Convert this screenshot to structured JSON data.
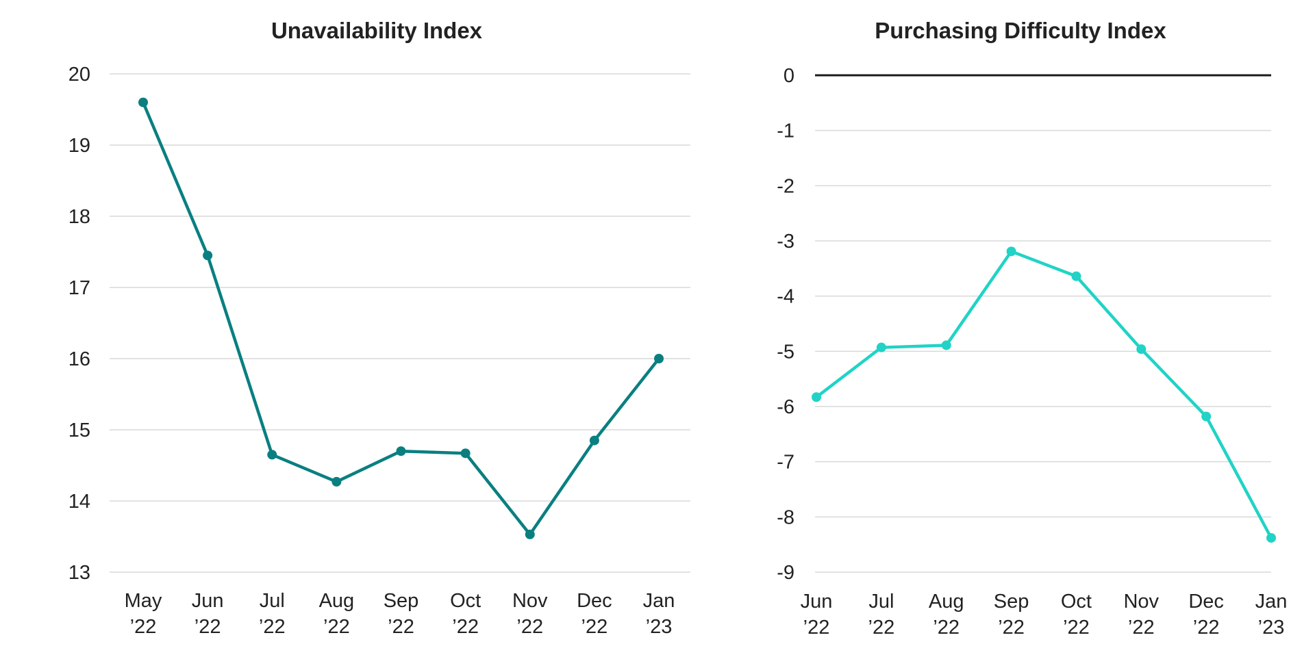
{
  "chart_data": [
    {
      "type": "line",
      "title": "Unavailability Index",
      "xlabel": "",
      "ylabel": "",
      "categories": [
        [
          "May",
          "’22"
        ],
        [
          "Jun",
          "’22"
        ],
        [
          "Jul",
          "’22"
        ],
        [
          "Aug",
          "’22"
        ],
        [
          "Sep",
          "’22"
        ],
        [
          "Oct",
          "’22"
        ],
        [
          "Nov",
          "’22"
        ],
        [
          "Dec",
          "’22"
        ],
        [
          "Jan",
          "’23"
        ]
      ],
      "values": [
        19.6,
        17.45,
        14.65,
        14.27,
        14.7,
        14.67,
        13.53,
        14.85,
        16.0
      ],
      "ylim": [
        13,
        20
      ],
      "yticks": [
        13,
        14,
        15,
        16,
        17,
        18,
        19,
        20
      ],
      "grid": true,
      "color": "#0a7f80"
    },
    {
      "type": "line",
      "title": "Purchasing Difficulty Index",
      "xlabel": "",
      "ylabel": "",
      "categories": [
        [
          "Jun",
          "’22"
        ],
        [
          "Jul",
          "’22"
        ],
        [
          "Aug",
          "’22"
        ],
        [
          "Sep",
          "’22"
        ],
        [
          "Oct",
          "’22"
        ],
        [
          "Nov",
          "’22"
        ],
        [
          "Dec",
          "’22"
        ],
        [
          "Jan",
          "’23"
        ]
      ],
      "values": [
        -5.83,
        -4.93,
        -4.89,
        -3.19,
        -3.64,
        -4.96,
        -6.18,
        -8.38
      ],
      "ylim": [
        -9,
        0
      ],
      "yticks": [
        0,
        -1,
        -2,
        -3,
        -4,
        -5,
        -6,
        -7,
        -8,
        -9
      ],
      "grid": true,
      "zero_line": true,
      "color": "#20d3c6"
    }
  ]
}
